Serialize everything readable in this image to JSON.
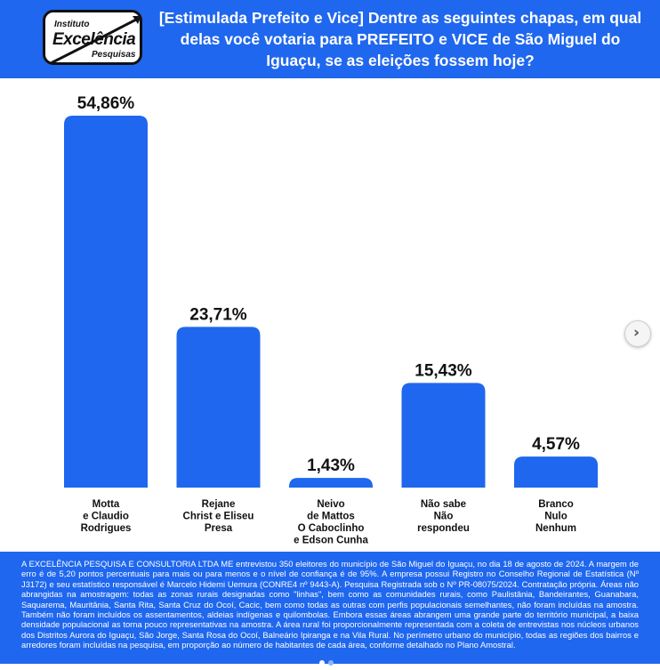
{
  "logo": {
    "line1": "Instituto",
    "line2": "Excelência",
    "line3": "Pesquisas"
  },
  "title": "[Estimulada Prefeito e Vice] Dentre as seguintes chapas, em qual delas você votaria para PREFEITO e VICE de São Miguel do Iguaçu, se as eleições fossem hoje?",
  "colors": {
    "accent": "#1f67ee",
    "bar": "#1f67ee"
  },
  "chart_data": {
    "type": "bar",
    "title": "",
    "xlabel": "",
    "ylabel": "",
    "ylim": [
      0,
      60
    ],
    "grid": false,
    "categories": [
      [
        "Motta",
        "e Claudio",
        "Rodrigues"
      ],
      [
        "Rejane",
        "Christ e Eliseu",
        "Presa"
      ],
      [
        "Neivo",
        "de Mattos",
        "O Caboclinho",
        "e Edson Cunha"
      ],
      [
        "Não sabe",
        "Não",
        "respondeu"
      ],
      [
        "Branco",
        "Nulo",
        "Nenhum"
      ]
    ],
    "values": [
      54.86,
      23.71,
      1.43,
      15.43,
      4.57
    ],
    "value_labels": [
      "54,86%",
      "23,71%",
      "1,43%",
      "15,43%",
      "4,57%"
    ]
  },
  "next_icon": "chevron-right-icon",
  "footer": {
    "text": "A EXCELÊNCIA PESQUISA E CONSULTORIA LTDA ME entrevistou 350 eleitores do município de São Miguel do Iguaçu, no dia 18 de agosto de 2024. A margem de erro é de 5,20 pontos percentuais para mais ou para menos e o nível de confiança é de 95%. A empresa possui Registro no Conselho Regional de Estatística (Nº J3172) e seu estatístico responsável é Marcelo Hidemi Uemura (CONRE4 nº 9443-A). Pesquisa Registrada sob o Nº PR-08075/2024. Contratação própria. Áreas não abrangidas na amostragem: todas as zonas rurais designadas como \"linhas\", bem como as comunidades rurais, como Paulistânia, Bandeirantes, Guanabara, Saquarema, Mauritânia, Santa Rita, Santa Cruz do Ocoí, Cacic, bem como todas as outras com perfis populacionais semelhantes, não foram incluídas na amostra. Também não foram incluídos os assentamentos, aldeias indígenas e quilombolas. Embora essas áreas abrangem uma grande parte do território municipal, a baixa densidade populacional as torna pouco representativas na amostra. A área rural foi proporcionalmente representada com a coleta de entrevistas nos núcleos urbanos dos Distritos Aurora do Iguaçu, São Jorge, Santa Rosa do Ocoí, Balneário Ipiranga e na Vila Rural. No perímetro urbano do município, todas as regiões dos bairros e arredores foram incluídas na pesquisa, em proporção ao número de habitantes de cada área, conforme detalhado no Plano Amostral."
  }
}
